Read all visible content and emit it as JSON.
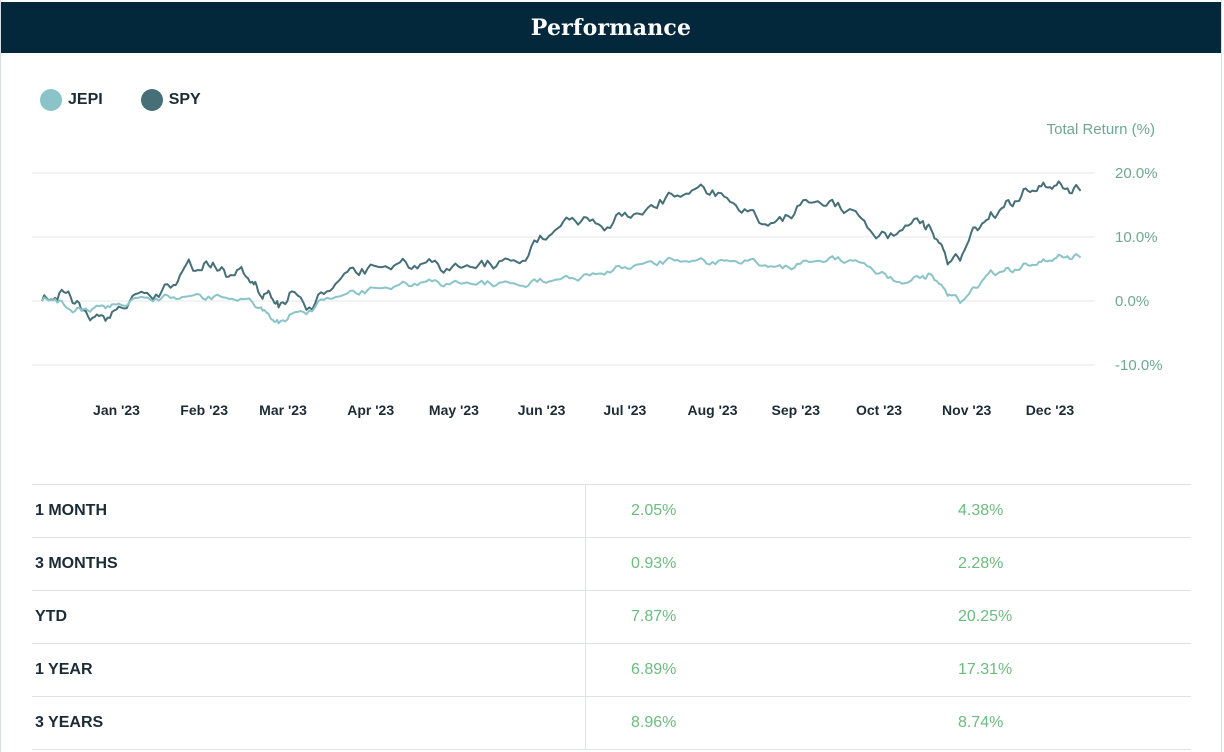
{
  "header": {
    "title": "Performance"
  },
  "legend": [
    {
      "label": "JEPI",
      "color": "#8ac4c9"
    },
    {
      "label": "SPY",
      "color": "#466f78"
    }
  ],
  "chart_data": {
    "type": "line",
    "ylabel": "Total Return (%)",
    "ylim": [
      -10,
      20
    ],
    "yticks": [
      "20.0%",
      "10.0%",
      "0.0%",
      "-10.0%"
    ],
    "ytick_values": [
      20,
      10,
      0,
      -10
    ],
    "xticks": [
      "Jan '23",
      "Feb '23",
      "Mar '23",
      "Apr '23",
      "May '23",
      "Jun '23",
      "Jul '23",
      "Aug '23",
      "Sep '23",
      "Oct '23",
      "Nov '23",
      "Dec '23"
    ],
    "xtick_positions": [
      0.25,
      1.25,
      2.15,
      3.15,
      4.1,
      5.1,
      6.05,
      7.05,
      8.0,
      8.95,
      9.95,
      10.9
    ],
    "grid": true,
    "legend_position": "top-left",
    "x_range": [
      -0.6,
      11.3
    ],
    "series": [
      {
        "name": "JEPI",
        "color": "#8ac4c9",
        "x": [
          -0.6,
          -0.45,
          -0.3,
          -0.15,
          0.0,
          0.15,
          0.3,
          0.5,
          0.7,
          0.9,
          1.1,
          1.3,
          1.5,
          1.7,
          1.9,
          2.0,
          2.1,
          2.25,
          2.45,
          2.65,
          2.85,
          3.05,
          3.25,
          3.45,
          3.65,
          3.85,
          4.05,
          4.25,
          4.45,
          4.65,
          4.85,
          5.05,
          5.25,
          5.45,
          5.65,
          5.85,
          6.05,
          6.25,
          6.45,
          6.65,
          6.85,
          7.05,
          7.25,
          7.45,
          7.65,
          7.85,
          8.05,
          8.25,
          8.45,
          8.65,
          8.85,
          9.05,
          9.25,
          9.45,
          9.55,
          9.65,
          9.75,
          9.9,
          10.05,
          10.2,
          10.35,
          10.5,
          10.65,
          10.8,
          10.95,
          11.1,
          11.25
        ],
        "values": [
          0,
          0.3,
          -1.2,
          -1.5,
          -1.0,
          -0.8,
          -0.6,
          0.5,
          0.4,
          0.6,
          0.8,
          0.7,
          0.5,
          0.3,
          -1.0,
          -2.5,
          -3.5,
          -2.0,
          -1.5,
          0.5,
          1.0,
          1.6,
          2.0,
          2.4,
          2.7,
          3.1,
          2.6,
          2.9,
          2.6,
          2.9,
          2.4,
          3.0,
          3.3,
          3.6,
          4.0,
          4.6,
          5.3,
          5.8,
          6.2,
          6.4,
          6.3,
          6.1,
          6.2,
          6.3,
          5.6,
          5.1,
          5.8,
          6.3,
          6.5,
          6.3,
          5.3,
          3.6,
          2.8,
          3.9,
          4.1,
          2.6,
          1.0,
          0.0,
          2.1,
          4.3,
          4.6,
          4.9,
          5.6,
          6.1,
          6.6,
          7.0,
          6.8
        ]
      },
      {
        "name": "SPY",
        "color": "#466f78",
        "x": [
          -0.6,
          -0.45,
          -0.3,
          -0.15,
          0.0,
          0.15,
          0.3,
          0.5,
          0.7,
          0.9,
          1.05,
          1.2,
          1.35,
          1.5,
          1.65,
          1.8,
          1.9,
          2.0,
          2.1,
          2.25,
          2.45,
          2.65,
          2.85,
          3.05,
          3.25,
          3.45,
          3.65,
          3.85,
          4.05,
          4.25,
          4.45,
          4.65,
          4.85,
          5.05,
          5.25,
          5.45,
          5.65,
          5.85,
          6.05,
          6.25,
          6.45,
          6.65,
          6.85,
          7.05,
          7.25,
          7.45,
          7.65,
          7.85,
          8.05,
          8.25,
          8.45,
          8.65,
          8.85,
          9.05,
          9.25,
          9.45,
          9.55,
          9.65,
          9.75,
          9.9,
          10.05,
          10.2,
          10.35,
          10.5,
          10.65,
          10.8,
          10.95,
          11.1,
          11.25
        ],
        "values": [
          0,
          0.5,
          1.5,
          -1.5,
          -2.5,
          -2.6,
          -1.0,
          1.2,
          1.0,
          2.5,
          5.8,
          4.8,
          6.0,
          3.8,
          5.0,
          3.0,
          0.7,
          1.2,
          -1.0,
          1.5,
          -1.0,
          1.5,
          4.3,
          5.0,
          5.3,
          5.8,
          5.5,
          6.1,
          4.8,
          5.6,
          5.4,
          6.3,
          5.9,
          9.2,
          11.0,
          13.0,
          12.5,
          11.5,
          13.8,
          13.5,
          15.8,
          16.5,
          17.5,
          17.3,
          15.5,
          14.0,
          12.0,
          12.5,
          15.0,
          15.6,
          14.8,
          14.2,
          11.0,
          9.8,
          11.8,
          12.5,
          11.0,
          9.0,
          6.0,
          7.3,
          11.5,
          12.8,
          14.5,
          15.6,
          17.2,
          17.9,
          18.0,
          17.6,
          17.2
        ]
      }
    ]
  },
  "table": {
    "rows": [
      {
        "period": "1 MONTH",
        "jepi": "2.05%",
        "spy": "4.38%"
      },
      {
        "period": "3 MONTHS",
        "jepi": "0.93%",
        "spy": "2.28%"
      },
      {
        "period": "YTD",
        "jepi": "7.87%",
        "spy": "20.25%"
      },
      {
        "period": "1 YEAR",
        "jepi": "6.89%",
        "spy": "17.31%"
      },
      {
        "period": "3 YEARS",
        "jepi": "8.96%",
        "spy": "8.74%"
      }
    ]
  }
}
